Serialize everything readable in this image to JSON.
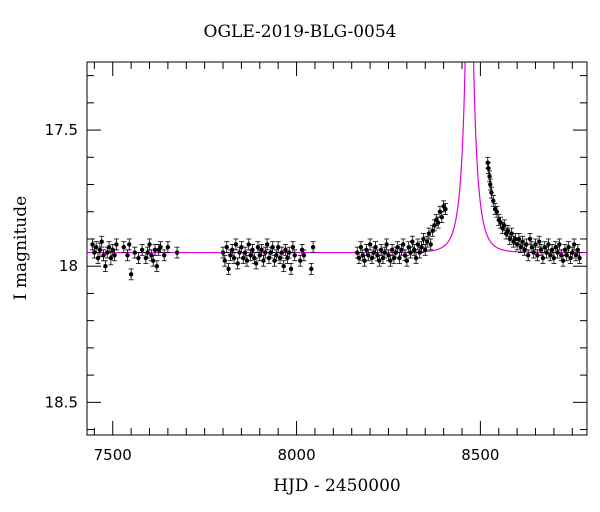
{
  "chart_data": {
    "type": "scatter",
    "title": "OGLE-2019-BLG-0054",
    "xlabel": "HJD - 2450000",
    "ylabel": "I magnitude",
    "xlim": [
      7430,
      8790
    ],
    "ylim": [
      18.62,
      17.25
    ],
    "y_inverted": true,
    "grid": false,
    "x_ticks": [
      7500,
      8000,
      8500
    ],
    "x_tick_labels": [
      "7500",
      "8000",
      "8500"
    ],
    "y_ticks": [
      17.5,
      18,
      18.5
    ],
    "y_tick_labels": [
      "17.5",
      "18",
      "18.5"
    ],
    "colors": {
      "points": "#000000",
      "model": "#e000e0",
      "axes": "#000000"
    },
    "series": [
      {
        "kind": "photometry",
        "points": [
          [
            7445,
            17.92,
            0.02
          ],
          [
            7450,
            17.95,
            0.02
          ],
          [
            7455,
            17.93,
            0.02
          ],
          [
            7460,
            17.97,
            0.02
          ],
          [
            7465,
            17.94,
            0.025
          ],
          [
            7470,
            17.91,
            0.02
          ],
          [
            7475,
            17.96,
            0.02
          ],
          [
            7480,
            18.0,
            0.02
          ],
          [
            7485,
            17.95,
            0.02
          ],
          [
            7490,
            17.93,
            0.02
          ],
          [
            7495,
            17.97,
            0.025
          ],
          [
            7500,
            17.94,
            0.02
          ],
          [
            7505,
            17.96,
            0.02
          ],
          [
            7510,
            17.92,
            0.02
          ],
          [
            7530,
            17.93,
            0.02
          ],
          [
            7540,
            17.96,
            0.02
          ],
          [
            7545,
            17.92,
            0.02
          ],
          [
            7550,
            18.03,
            0.02
          ],
          [
            7560,
            17.95,
            0.02
          ],
          [
            7570,
            17.97,
            0.02
          ],
          [
            7580,
            17.94,
            0.02
          ],
          [
            7590,
            17.97,
            0.02
          ],
          [
            7595,
            17.95,
            0.02
          ],
          [
            7600,
            17.92,
            0.02
          ],
          [
            7605,
            17.96,
            0.02
          ],
          [
            7610,
            17.98,
            0.02
          ],
          [
            7615,
            17.94,
            0.02
          ],
          [
            7620,
            18.0,
            0.02
          ],
          [
            7625,
            17.94,
            0.02
          ],
          [
            7630,
            17.93,
            0.02
          ],
          [
            7640,
            17.96,
            0.02
          ],
          [
            7650,
            17.93,
            0.02
          ],
          [
            7675,
            17.95,
            0.02
          ],
          [
            7800,
            17.95,
            0.02
          ],
          [
            7805,
            17.98,
            0.02
          ],
          [
            7810,
            17.93,
            0.02
          ],
          [
            7815,
            18.01,
            0.02
          ],
          [
            7820,
            17.96,
            0.02
          ],
          [
            7825,
            17.94,
            0.02
          ],
          [
            7830,
            17.97,
            0.02
          ],
          [
            7835,
            17.92,
            0.02
          ],
          [
            7840,
            17.99,
            0.02
          ],
          [
            7845,
            17.95,
            0.02
          ],
          [
            7850,
            17.93,
            0.02
          ],
          [
            7855,
            17.97,
            0.02
          ],
          [
            7860,
            17.95,
            0.02
          ],
          [
            7865,
            17.98,
            0.02
          ],
          [
            7870,
            17.92,
            0.02
          ],
          [
            7875,
            17.96,
            0.02
          ],
          [
            7880,
            17.94,
            0.02
          ],
          [
            7885,
            17.97,
            0.02
          ],
          [
            7890,
            17.99,
            0.02
          ],
          [
            7895,
            17.93,
            0.02
          ],
          [
            7900,
            17.96,
            0.02
          ],
          [
            7905,
            17.94,
            0.02
          ],
          [
            7910,
            17.98,
            0.02
          ],
          [
            7915,
            17.95,
            0.02
          ],
          [
            7920,
            17.92,
            0.02
          ],
          [
            7925,
            17.97,
            0.02
          ],
          [
            7930,
            17.95,
            0.02
          ],
          [
            7935,
            17.93,
            0.02
          ],
          [
            7940,
            17.98,
            0.02
          ],
          [
            7945,
            17.96,
            0.02
          ],
          [
            7950,
            17.93,
            0.02
          ],
          [
            7955,
            17.97,
            0.02
          ],
          [
            7960,
            17.95,
            0.02
          ],
          [
            7965,
            18.0,
            0.02
          ],
          [
            7970,
            17.94,
            0.02
          ],
          [
            7975,
            17.97,
            0.02
          ],
          [
            7980,
            17.95,
            0.02
          ],
          [
            7985,
            18.01,
            0.02
          ],
          [
            7990,
            17.93,
            0.02
          ],
          [
            7995,
            17.96,
            0.02
          ],
          [
            8010,
            17.98,
            0.02
          ],
          [
            8015,
            17.94,
            0.02
          ],
          [
            8020,
            17.96,
            0.02
          ],
          [
            8040,
            18.01,
            0.02
          ],
          [
            8045,
            17.93,
            0.02
          ],
          [
            8165,
            17.95,
            0.02
          ],
          [
            8170,
            17.97,
            0.02
          ],
          [
            8175,
            17.93,
            0.02
          ],
          [
            8180,
            17.96,
            0.02
          ],
          [
            8185,
            17.98,
            0.02
          ],
          [
            8190,
            17.94,
            0.02
          ],
          [
            8195,
            17.96,
            0.02
          ],
          [
            8200,
            17.92,
            0.02
          ],
          [
            8205,
            17.97,
            0.02
          ],
          [
            8210,
            17.95,
            0.02
          ],
          [
            8215,
            17.93,
            0.02
          ],
          [
            8220,
            17.96,
            0.02
          ],
          [
            8225,
            17.98,
            0.02
          ],
          [
            8230,
            17.94,
            0.02
          ],
          [
            8235,
            17.97,
            0.02
          ],
          [
            8240,
            17.95,
            0.02
          ],
          [
            8245,
            17.92,
            0.02
          ],
          [
            8250,
            17.96,
            0.02
          ],
          [
            8255,
            17.98,
            0.02
          ],
          [
            8260,
            17.94,
            0.02
          ],
          [
            8265,
            17.97,
            0.02
          ],
          [
            8270,
            17.95,
            0.02
          ],
          [
            8275,
            17.93,
            0.02
          ],
          [
            8280,
            17.97,
            0.02
          ],
          [
            8285,
            17.94,
            0.02
          ],
          [
            8290,
            17.92,
            0.02
          ],
          [
            8295,
            17.96,
            0.02
          ],
          [
            8300,
            17.98,
            0.02
          ],
          [
            8305,
            17.93,
            0.02
          ],
          [
            8310,
            17.95,
            0.02
          ],
          [
            8315,
            17.91,
            0.02
          ],
          [
            8320,
            17.94,
            0.02
          ],
          [
            8325,
            17.97,
            0.02
          ],
          [
            8330,
            17.92,
            0.02
          ],
          [
            8335,
            17.95,
            0.02
          ],
          [
            8340,
            17.93,
            0.02
          ],
          [
            8345,
            17.9,
            0.02
          ],
          [
            8350,
            17.94,
            0.02
          ],
          [
            8355,
            17.91,
            0.02
          ],
          [
            8360,
            17.88,
            0.02
          ],
          [
            8365,
            17.92,
            0.02
          ],
          [
            8370,
            17.87,
            0.02
          ],
          [
            8375,
            17.85,
            0.02
          ],
          [
            8380,
            17.83,
            0.02
          ],
          [
            8385,
            17.84,
            0.02
          ],
          [
            8390,
            17.8,
            0.02
          ],
          [
            8395,
            17.82,
            0.02
          ],
          [
            8400,
            17.78,
            0.02
          ],
          [
            8405,
            17.79,
            0.02
          ],
          [
            8520,
            17.62,
            0.02
          ],
          [
            8522,
            17.64,
            0.02
          ],
          [
            8525,
            17.67,
            0.02
          ],
          [
            8527,
            17.7,
            0.02
          ],
          [
            8530,
            17.73,
            0.02
          ],
          [
            8535,
            17.76,
            0.02
          ],
          [
            8540,
            17.79,
            0.02
          ],
          [
            8545,
            17.8,
            0.02
          ],
          [
            8550,
            17.83,
            0.02
          ],
          [
            8555,
            17.84,
            0.02
          ],
          [
            8560,
            17.86,
            0.02
          ],
          [
            8565,
            17.85,
            0.02
          ],
          [
            8570,
            17.88,
            0.02
          ],
          [
            8575,
            17.87,
            0.02
          ],
          [
            8580,
            17.9,
            0.02
          ],
          [
            8585,
            17.88,
            0.02
          ],
          [
            8590,
            17.91,
            0.02
          ],
          [
            8595,
            17.9,
            0.02
          ],
          [
            8600,
            17.92,
            0.02
          ],
          [
            8605,
            17.9,
            0.02
          ],
          [
            8610,
            17.93,
            0.02
          ],
          [
            8615,
            17.91,
            0.02
          ],
          [
            8620,
            17.94,
            0.02
          ],
          [
            8625,
            17.92,
            0.02
          ],
          [
            8630,
            17.96,
            0.02
          ],
          [
            8635,
            17.9,
            0.02
          ],
          [
            8640,
            17.93,
            0.02
          ],
          [
            8645,
            17.95,
            0.02
          ],
          [
            8650,
            17.92,
            0.02
          ],
          [
            8655,
            17.96,
            0.02
          ],
          [
            8660,
            17.91,
            0.02
          ],
          [
            8665,
            17.94,
            0.02
          ],
          [
            8670,
            17.97,
            0.02
          ],
          [
            8675,
            17.93,
            0.02
          ],
          [
            8680,
            17.95,
            0.02
          ],
          [
            8685,
            17.92,
            0.02
          ],
          [
            8690,
            17.96,
            0.02
          ],
          [
            8695,
            17.94,
            0.02
          ],
          [
            8700,
            17.97,
            0.02
          ],
          [
            8705,
            17.93,
            0.02
          ],
          [
            8710,
            17.95,
            0.02
          ],
          [
            8715,
            17.92,
            0.02
          ],
          [
            8720,
            17.96,
            0.02
          ],
          [
            8725,
            17.98,
            0.02
          ],
          [
            8730,
            17.94,
            0.02
          ],
          [
            8735,
            17.96,
            0.02
          ],
          [
            8740,
            17.93,
            0.02
          ],
          [
            8745,
            17.97,
            0.02
          ],
          [
            8750,
            17.95,
            0.02
          ],
          [
            8755,
            17.92,
            0.02
          ],
          [
            8760,
            17.96,
            0.02
          ],
          [
            8765,
            17.94,
            0.02
          ],
          [
            8770,
            17.97,
            0.02
          ]
        ]
      },
      {
        "kind": "model",
        "description": "single-lens fit",
        "t0": 8470,
        "u0": 0.055,
        "tE": 31,
        "baseline": 17.95,
        "blend_fraction": 0.5
      }
    ]
  }
}
